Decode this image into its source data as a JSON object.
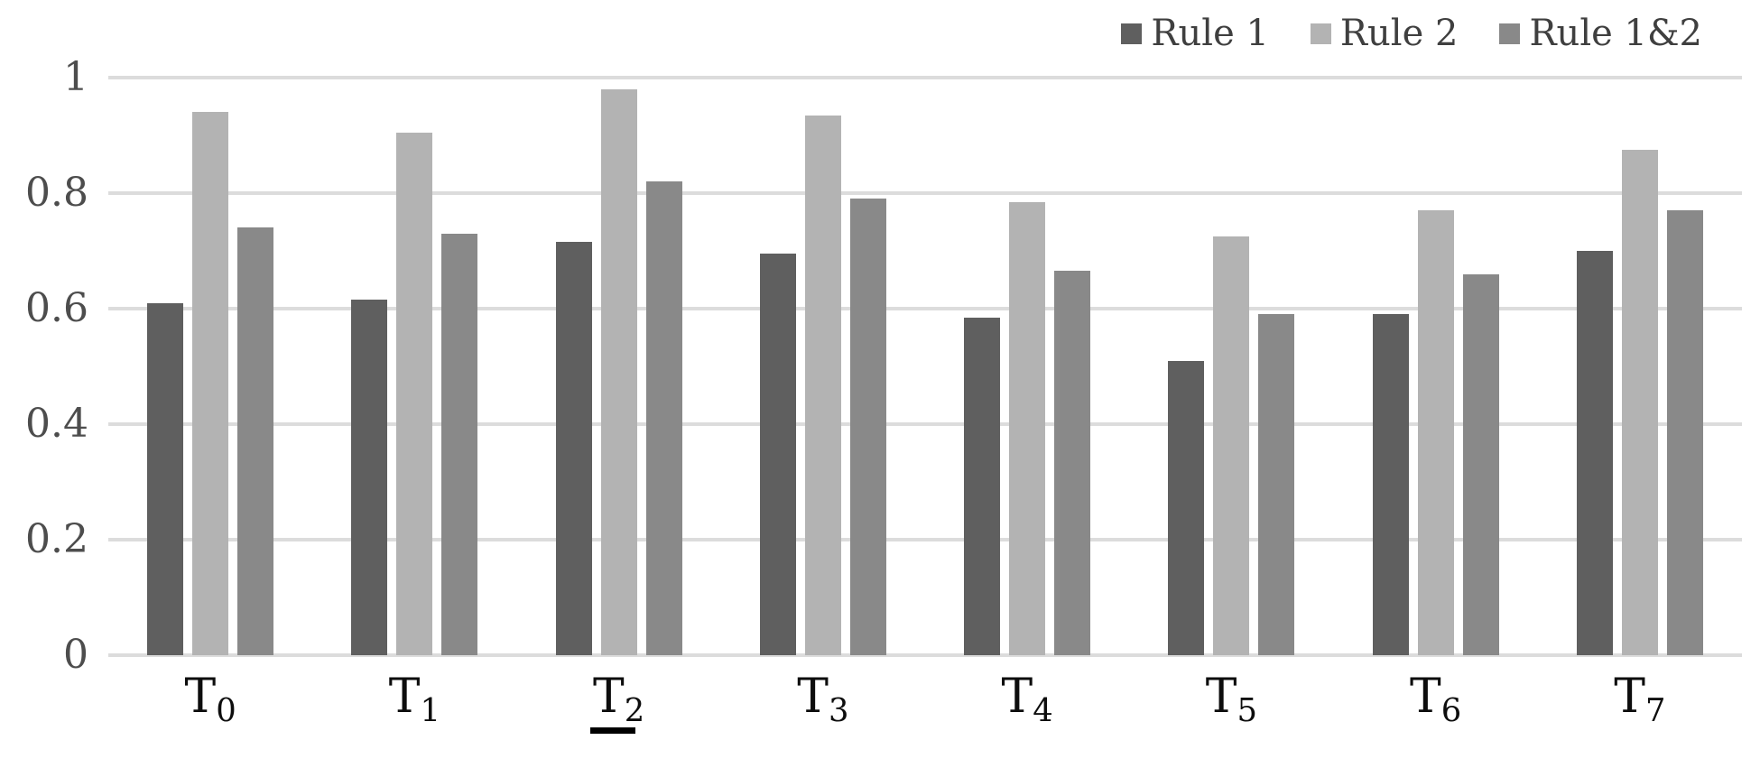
{
  "chart_data": {
    "type": "bar",
    "title": "",
    "xlabel": "",
    "ylabel": "",
    "categories": [
      {
        "base": "T",
        "sub": "0",
        "underlined": false
      },
      {
        "base": "T",
        "sub": "1",
        "underlined": false
      },
      {
        "base": "T",
        "sub": "2",
        "underlined": true
      },
      {
        "base": "T",
        "sub": "3",
        "underlined": false
      },
      {
        "base": "T",
        "sub": "4",
        "underlined": false
      },
      {
        "base": "T",
        "sub": "5",
        "underlined": false
      },
      {
        "base": "T",
        "sub": "6",
        "underlined": false
      },
      {
        "base": "T",
        "sub": "7",
        "underlined": false
      }
    ],
    "series": [
      {
        "name": "Rule 1",
        "color": "#5f5f5f",
        "values": [
          0.61,
          0.615,
          0.715,
          0.695,
          0.585,
          0.51,
          0.59,
          0.7
        ]
      },
      {
        "name": "Rule 2",
        "color": "#b3b3b3",
        "values": [
          0.94,
          0.905,
          0.98,
          0.935,
          0.785,
          0.725,
          0.77,
          0.875
        ]
      },
      {
        "name": "Rule 1&2",
        "color": "#898989",
        "values": [
          0.74,
          0.73,
          0.82,
          0.79,
          0.665,
          0.59,
          0.66,
          0.77
        ]
      }
    ],
    "y_axis": {
      "tick_labels": [
        "0",
        "0.2",
        "0.4",
        "0.6",
        "0.8",
        "1"
      ],
      "tick_values": [
        0,
        0.2,
        0.4,
        0.6,
        0.8,
        1
      ],
      "range": [
        0,
        1
      ]
    },
    "grid": true,
    "legend_position": "top-right",
    "style": {
      "gridline_color": "#dcdcdc",
      "y_tick_color": "#4d4d4d",
      "x_label_color": "#0d0d0d",
      "legend_text_color": "#3f3f3f",
      "underline_color": "#000000",
      "background": "#ffffff"
    }
  }
}
